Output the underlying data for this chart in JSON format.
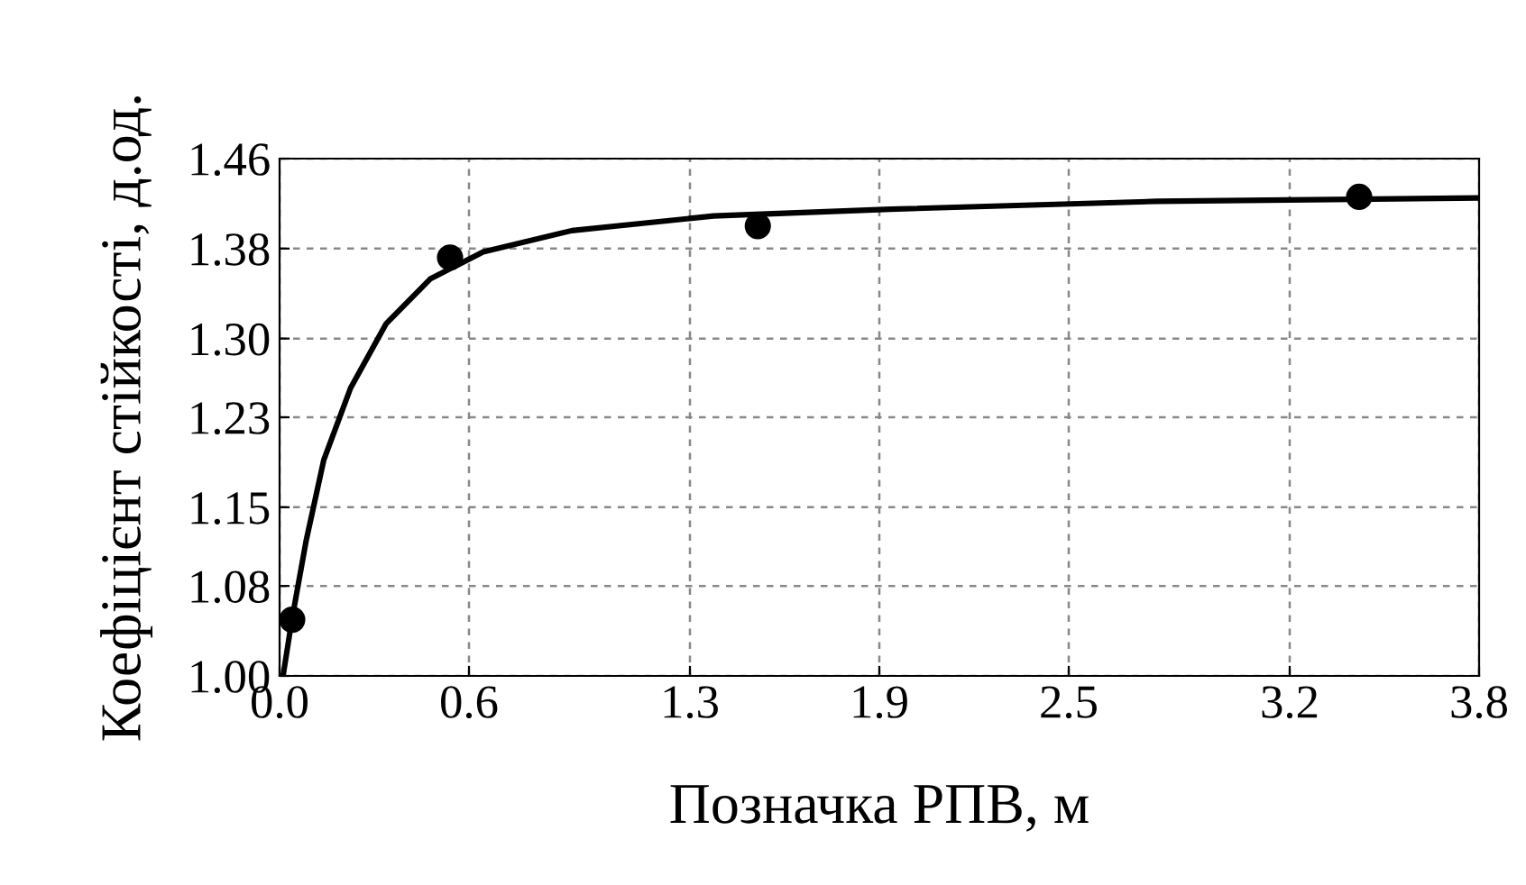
{
  "chart_data": {
    "type": "line",
    "xlabel": "Позначка РПВ, м",
    "ylabel": "Коефіцієнт стійкості, д.од.",
    "xlim": [
      0,
      3.8
    ],
    "ylim": [
      1.0,
      1.46
    ],
    "xticks": [
      {
        "value": 0,
        "label": "0.0"
      },
      0.6,
      1.3,
      1.9,
      2.5,
      3.2,
      3.8
    ],
    "yticks": [
      {
        "value": 1.0,
        "label": "1.00"
      },
      1.08,
      1.15,
      1.23,
      {
        "value": 1.3,
        "label": "1.30"
      },
      1.38,
      1.46
    ],
    "grid": true,
    "series": [
      {
        "color": "#000000",
        "marker": "none",
        "line_style": "solid",
        "x": [
          0.011,
          0.039,
          0.084,
          0.14,
          0.225,
          0.337,
          0.477,
          0.645,
          0.926,
          1.375,
          1.936,
          2.778,
          3.8
        ],
        "values": [
          1.0,
          1.05,
          1.12,
          1.192,
          1.256,
          1.313,
          1.353,
          1.377,
          1.396,
          1.409,
          1.415,
          1.422,
          1.425
        ]
      },
      {
        "type": "scatter",
        "color": "#000000",
        "marker": "circle",
        "x": [
          0.04,
          0.54,
          1.515,
          3.42
        ],
        "values": [
          1.05,
          1.372,
          1.4,
          1.426
        ]
      }
    ]
  }
}
